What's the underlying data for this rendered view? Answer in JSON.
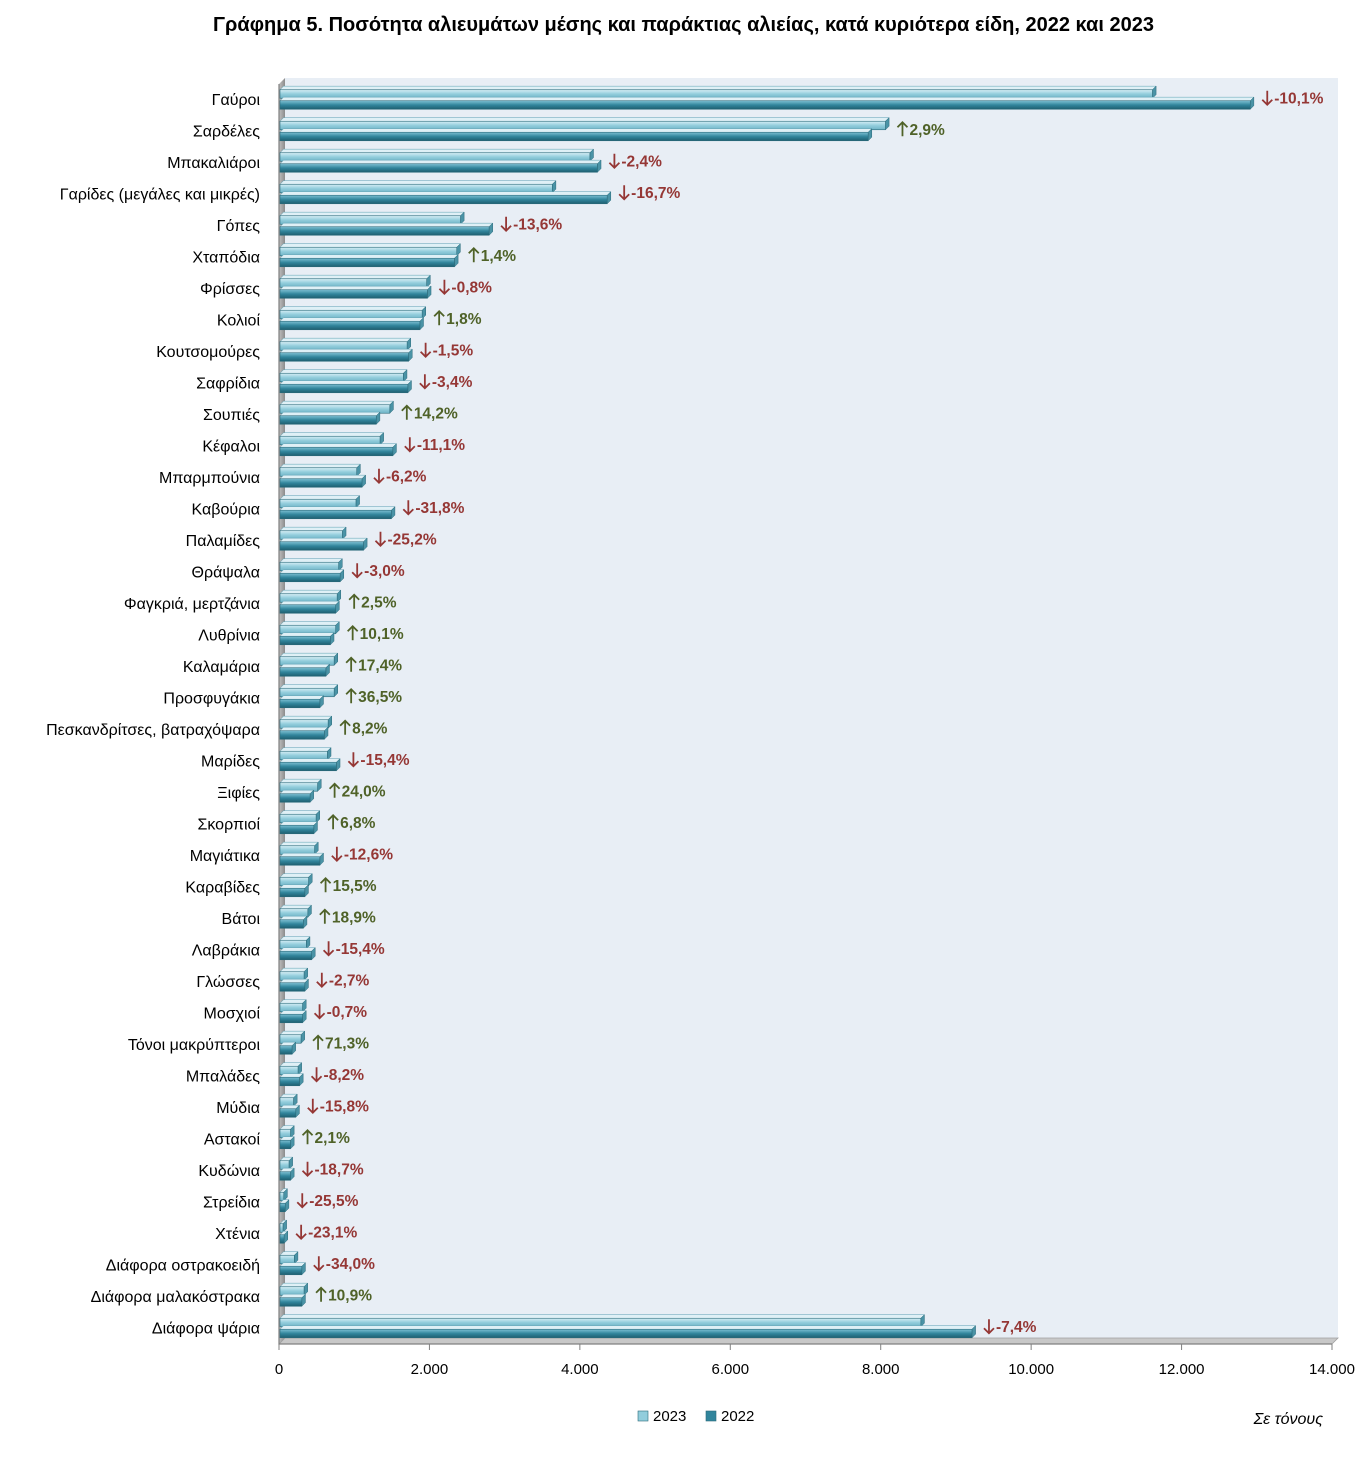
{
  "chart_data": {
    "type": "bar",
    "orientation": "horizontal",
    "title": "Γράφημα 5. Ποσότητα αλιευμάτων μέσης και παράκτιας αλιείας, κατά κυριότερα είδη, 2022 και 2023",
    "unit_note": "Σε τόνους",
    "xlim": [
      0,
      14000
    ],
    "xticks": [
      0,
      2000,
      4000,
      6000,
      8000,
      10000,
      12000,
      14000
    ],
    "xtick_labels": [
      "0",
      "2.000",
      "4.000",
      "6.000",
      "8.000",
      "10.000",
      "12.000",
      "14.000"
    ],
    "grid": false,
    "legend_position": "bottom",
    "categories": [
      "Γαύροι",
      "Σαρδέλες",
      "Μπακαλιάροι",
      "Γαρίδες (μεγάλες και μικρές)",
      "Γόπες",
      "Χταπόδια",
      "Φρίσσες",
      "Κολιοί",
      "Κουτσομούρες",
      "Σαφρίδια",
      "Σουπιές",
      "Κέφαλοι",
      "Μπαρμπούνια",
      "Καβούρια",
      "Παλαμίδες",
      "Θράψαλα",
      "Φαγκριά, μερτζάνια",
      "Λυθρίνια",
      "Καλαμάρια",
      "Προσφυγάκια",
      "Πεσκανδρίτσες, βατραχόψαρα",
      "Μαρίδες",
      "Ξιφίες",
      "Σκορπιοί",
      "Μαγιάτικα",
      "Καραβίδες",
      "Βάτοι",
      "Λαβράκια",
      "Γλώσσες",
      "Μοσχιοί",
      "Τόνοι μακρύπτεροι",
      "Μπαλάδες",
      "Μύδια",
      "Αστακοί",
      "Κυδώνια",
      "Στρείδια",
      "Χτένια",
      "Διάφορα οστρακοειδή",
      "Διάφορα μαλακόστρακα",
      "Διάφορα ψάρια"
    ],
    "series": [
      {
        "name": "2023",
        "color": "#92cddc",
        "values": [
          11600,
          8050,
          4120,
          3620,
          2400,
          2350,
          1950,
          1890,
          1690,
          1640,
          1460,
          1330,
          1020,
          1010,
          830,
          780,
          760,
          740,
          720,
          720,
          640,
          630,
          500,
          480,
          460,
          380,
          370,
          350,
          320,
          300,
          280,
          240,
          180,
          140,
          120,
          50,
          40,
          190,
          320,
          8520
        ]
      },
      {
        "name": "2022",
        "color": "#31859c",
        "values": [
          12900,
          7820,
          4220,
          4350,
          2780,
          2320,
          1960,
          1860,
          1710,
          1700,
          1280,
          1500,
          1090,
          1480,
          1110,
          800,
          740,
          670,
          610,
          530,
          590,
          750,
          400,
          450,
          530,
          330,
          310,
          420,
          330,
          300,
          160,
          260,
          210,
          140,
          140,
          70,
          55,
          290,
          290,
          9200
        ]
      }
    ],
    "annotations": [
      "-10,1%",
      "2,9%",
      "-2,4%",
      "-16,7%",
      "-13,6%",
      "1,4%",
      "-0,8%",
      "1,8%",
      "-1,5%",
      "-3,4%",
      "14,2%",
      "-11,1%",
      "-6,2%",
      "-31,8%",
      "-25,2%",
      "-3,0%",
      "2,5%",
      "10,1%",
      "17,4%",
      "36,5%",
      "8,2%",
      "-15,4%",
      "24,0%",
      "6,8%",
      "-12,6%",
      "15,5%",
      "18,9%",
      "-15,4%",
      "-2,7%",
      "-0,7%",
      "71,3%",
      "-8,2%",
      "-15,8%",
      "2,1%",
      "-18,7%",
      "-25,5%",
      "-23,1%",
      "-34,0%",
      "10,9%",
      "-7,4%"
    ],
    "up_color": "#4f6228",
    "down_color": "#953735",
    "plot_background": "#e8eef5"
  }
}
